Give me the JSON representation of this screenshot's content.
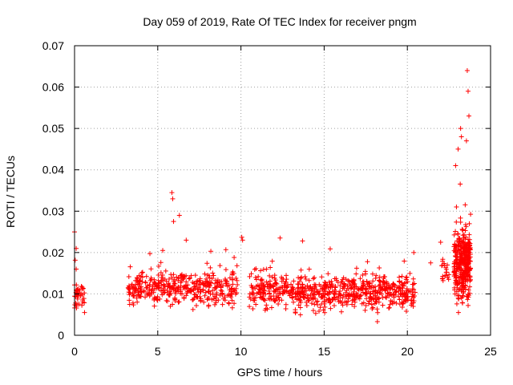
{
  "chart_data": {
    "type": "scatter",
    "title": "Day 059 of 2019, Rate Of TEC Index for receiver pngm",
    "xlabel": "GPS time / hours",
    "ylabel": "ROTI / TECUs",
    "xlim": [
      0,
      25
    ],
    "ylim": [
      0,
      0.07
    ],
    "grid": true,
    "marker": "+",
    "color": "#ff0000",
    "x_ticks": [
      0,
      5,
      10,
      15,
      20,
      25
    ],
    "x_tick_labels": [
      "0",
      "5",
      "10",
      "15",
      "20",
      "25"
    ],
    "y_ticks": [
      0,
      0.01,
      0.02,
      0.03,
      0.04,
      0.05,
      0.06,
      0.07
    ],
    "y_tick_labels": [
      "0",
      "0.01",
      "0.02",
      "0.03",
      "0.04",
      "0.05",
      "0.06",
      "0.07"
    ],
    "series": [
      {
        "name": "ROTI",
        "segments": [
          {
            "x_range": [
              0.0,
              0.6
            ],
            "base": 0.0095,
            "spread": 0.004,
            "count": 40
          },
          {
            "x_range": [
              3.2,
              9.8
            ],
            "base": 0.0115,
            "spread": 0.005,
            "count": 420
          },
          {
            "x_range": [
              10.5,
              20.5
            ],
            "base": 0.0105,
            "spread": 0.005,
            "count": 700
          },
          {
            "x_range": [
              22.0,
              22.6
            ],
            "base": 0.015,
            "spread": 0.005,
            "count": 20
          },
          {
            "x_range": [
              22.8,
              23.8
            ],
            "base": 0.017,
            "spread": 0.01,
            "count": 360
          }
        ],
        "highlights": [
          {
            "x": 0.0,
            "y": 0.025
          },
          {
            "x": 0.1,
            "y": 0.021
          },
          {
            "x": 0.1,
            "y": 0.016
          },
          {
            "x": 0.6,
            "y": 0.0055
          },
          {
            "x": 5.3,
            "y": 0.0205
          },
          {
            "x": 5.85,
            "y": 0.0345
          },
          {
            "x": 5.9,
            "y": 0.033
          },
          {
            "x": 5.95,
            "y": 0.0275
          },
          {
            "x": 6.3,
            "y": 0.029
          },
          {
            "x": 10.05,
            "y": 0.0237
          },
          {
            "x": 10.1,
            "y": 0.023
          },
          {
            "x": 12.35,
            "y": 0.0235
          },
          {
            "x": 13.7,
            "y": 0.0228
          },
          {
            "x": 18.2,
            "y": 0.0033
          },
          {
            "x": 21.4,
            "y": 0.0175
          },
          {
            "x": 22.0,
            "y": 0.0225
          },
          {
            "x": 23.05,
            "y": 0.045
          },
          {
            "x": 23.2,
            "y": 0.05
          },
          {
            "x": 23.25,
            "y": 0.048
          },
          {
            "x": 23.6,
            "y": 0.064
          },
          {
            "x": 23.65,
            "y": 0.059
          },
          {
            "x": 23.7,
            "y": 0.053
          },
          {
            "x": 23.55,
            "y": 0.047
          },
          {
            "x": 22.9,
            "y": 0.041
          }
        ]
      }
    ]
  }
}
